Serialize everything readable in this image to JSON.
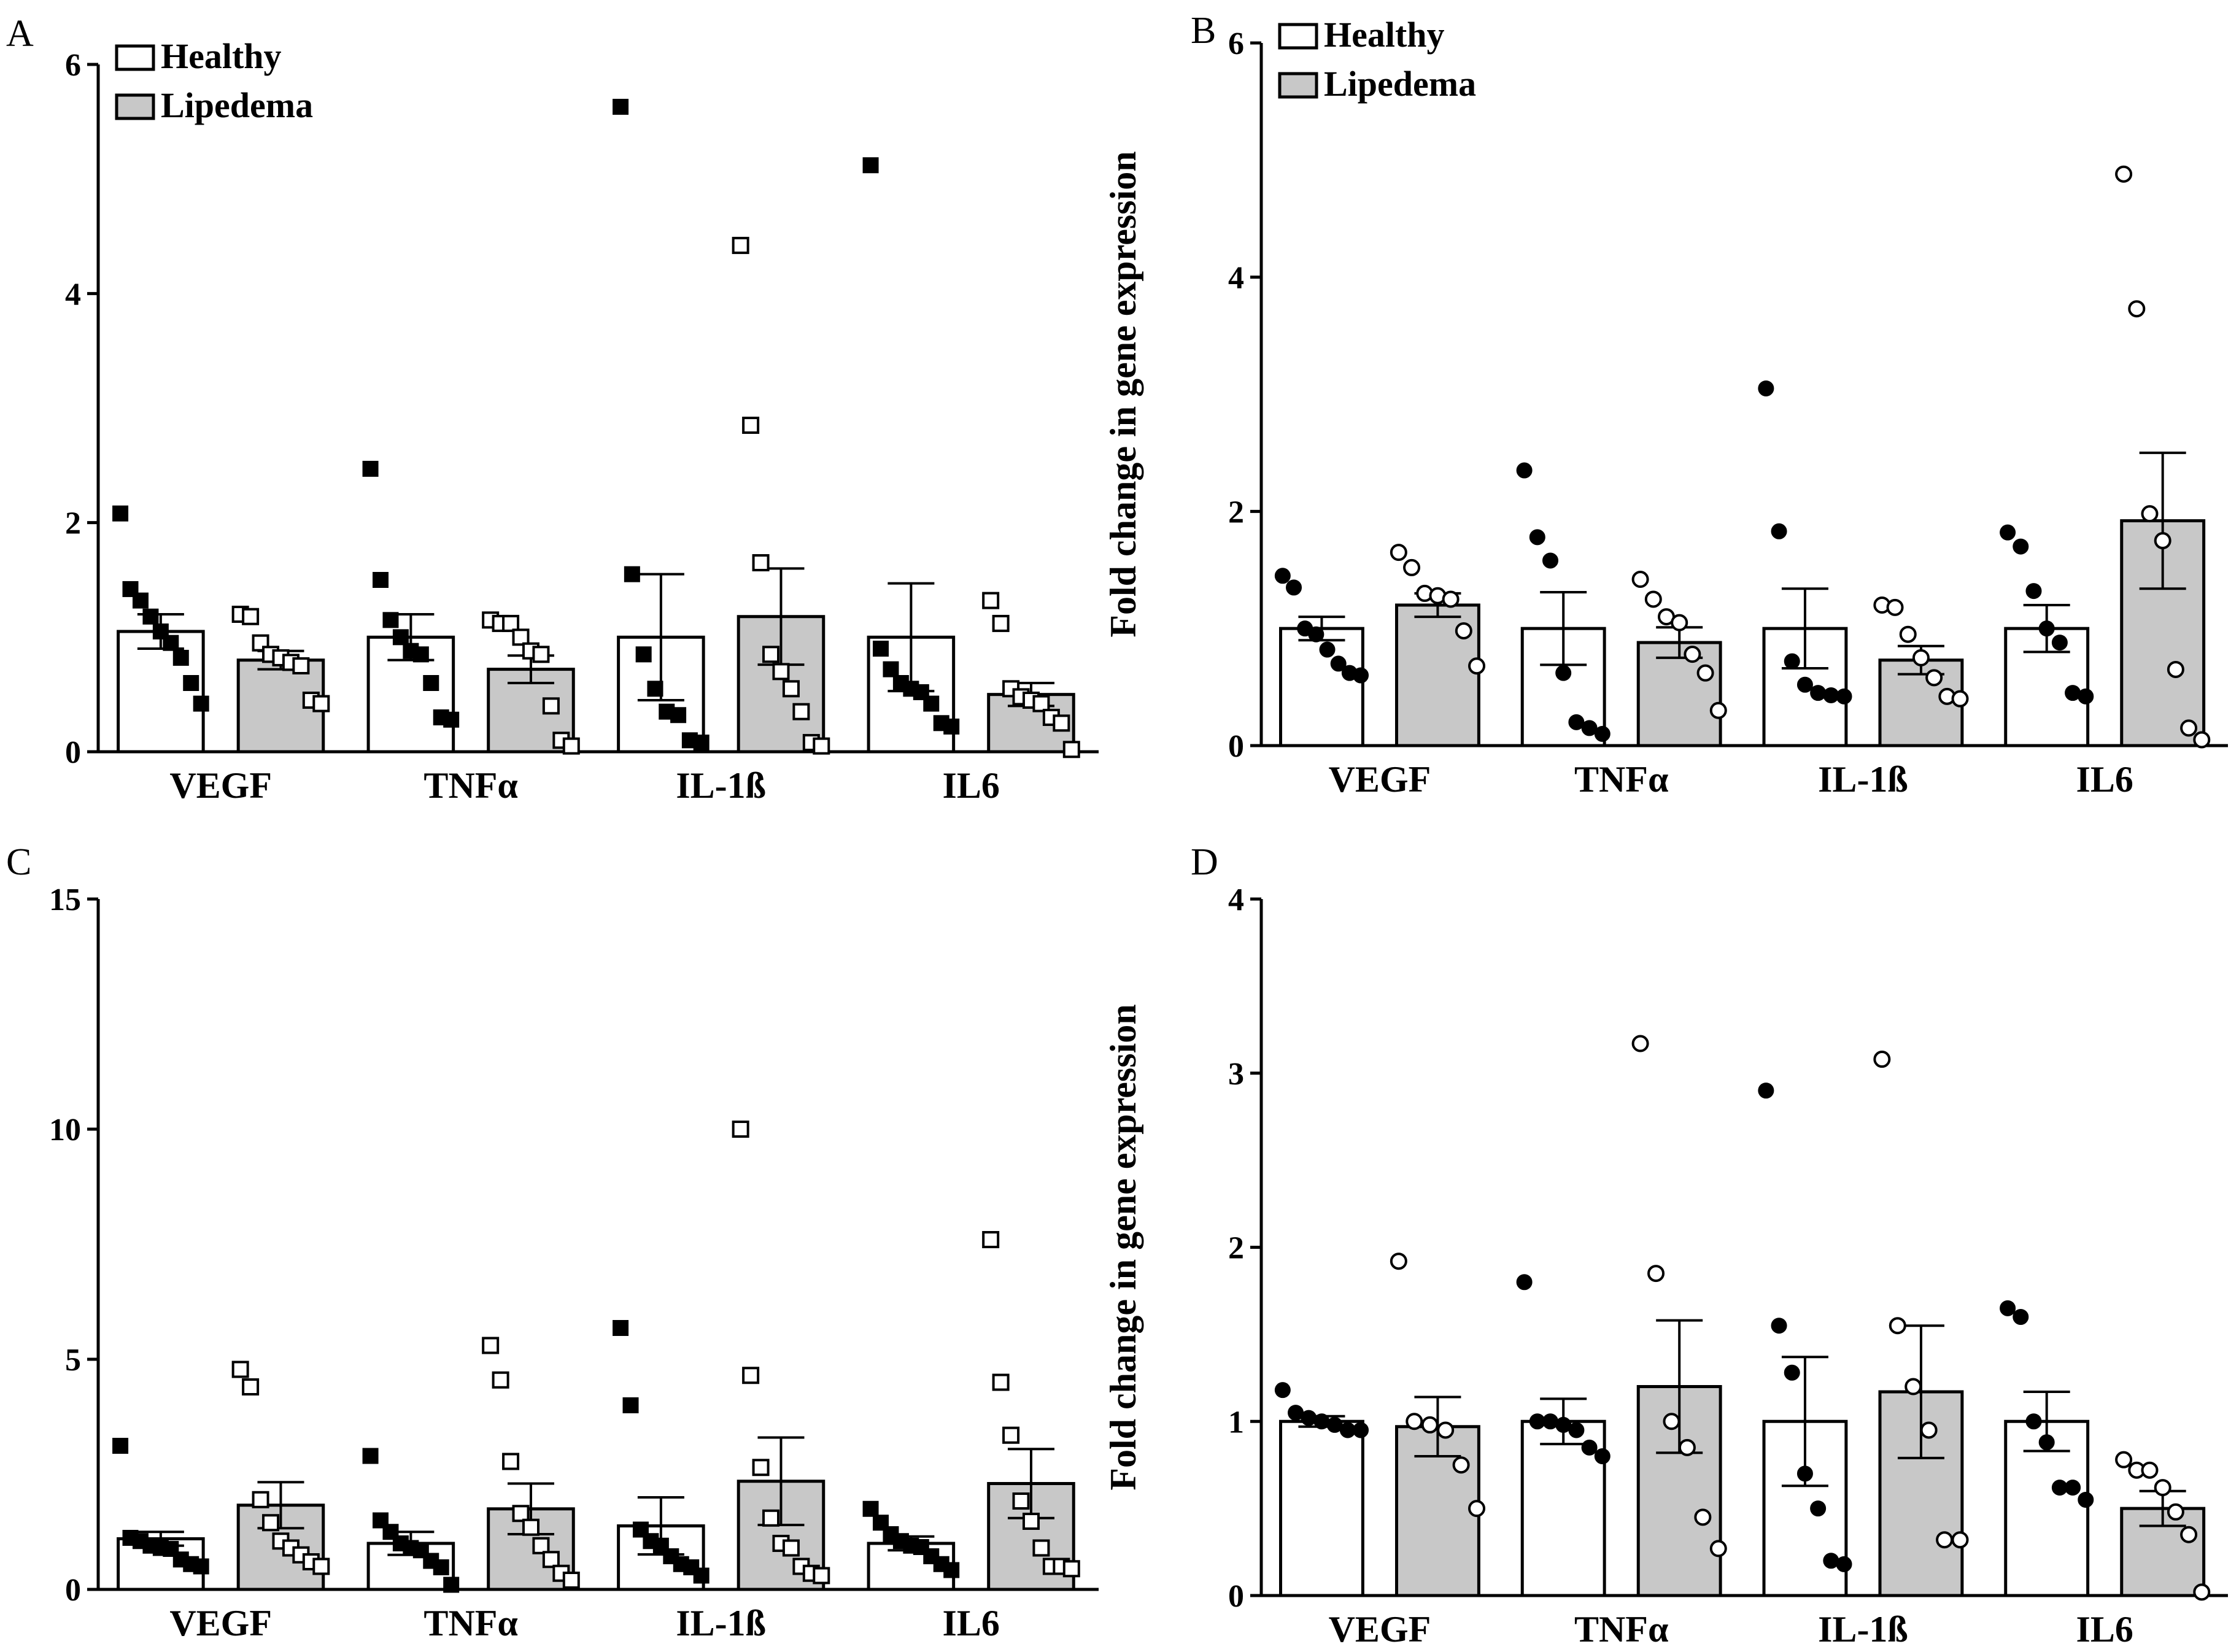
{
  "figure": {
    "panels": [
      {
        "id": "A",
        "letter": "A"
      },
      {
        "id": "B",
        "letter": "B"
      },
      {
        "id": "C",
        "letter": "C"
      },
      {
        "id": "D",
        "letter": "D"
      }
    ]
  },
  "chart_data": [
    {
      "panel": "A",
      "type": "bar",
      "ylabel": "Fold change in gene expression",
      "xlabel": "",
      "ylim": [
        0,
        6
      ],
      "yticks": [
        0,
        2,
        4,
        6
      ],
      "categories": [
        "VEGF",
        "TNFα",
        "IL-1ß",
        "IL6"
      ],
      "legend": {
        "placement": "top-left",
        "entries": [
          "Healthy",
          "Lipedema"
        ]
      },
      "marker": "square",
      "colors": {
        "Healthy": "#ffffff",
        "Lipedema": "#c8c8c8",
        "stroke": "#000000"
      },
      "series": [
        {
          "name": "Healthy",
          "fill": "#ffffff",
          "point_style": "filled",
          "values": [
            1.05,
            1.0,
            1.0,
            1.0
          ],
          "errors": [
            0.15,
            0.2,
            0.55,
            0.47
          ],
          "points": [
            [
              2.08,
              1.42,
              1.32,
              1.18,
              1.05,
              0.95,
              0.82,
              0.6,
              0.42
            ],
            [
              2.47,
              1.5,
              1.15,
              1.0,
              0.88,
              0.85,
              0.6,
              0.3,
              0.28
            ],
            [
              5.63,
              1.55,
              0.85,
              0.55,
              0.35,
              0.32,
              0.1,
              0.08
            ],
            [
              5.12,
              0.9,
              0.72,
              0.6,
              0.55,
              0.52,
              0.42,
              0.25,
              0.22
            ]
          ]
        },
        {
          "name": "Lipedema",
          "fill": "#c8c8c8",
          "point_style": "open",
          "values": [
            0.8,
            0.72,
            1.18,
            0.5
          ],
          "errors": [
            0.08,
            0.12,
            0.42,
            0.1
          ],
          "points": [
            [
              1.2,
              1.18,
              0.95,
              0.85,
              0.82,
              0.78,
              0.75,
              0.45,
              0.42
            ],
            [
              1.15,
              1.12,
              1.12,
              1.0,
              0.88,
              0.85,
              0.4,
              0.1,
              0.05
            ],
            [
              4.42,
              2.85,
              1.65,
              0.85,
              0.7,
              0.55,
              0.35,
              0.08,
              0.05
            ],
            [
              1.32,
              1.12,
              0.55,
              0.48,
              0.45,
              0.42,
              0.3,
              0.25,
              0.02
            ]
          ]
        }
      ]
    },
    {
      "panel": "B",
      "type": "bar",
      "ylabel": "Fold change in gene expression",
      "xlabel": "",
      "ylim": [
        0,
        6
      ],
      "yticks": [
        0,
        2,
        4,
        6
      ],
      "categories": [
        "VEGF",
        "TNFα",
        "IL-1ß",
        "IL6"
      ],
      "legend": {
        "placement": "top-left",
        "entries": [
          "Healthy",
          "Lipedema"
        ]
      },
      "marker": "circle",
      "colors": {
        "Healthy": "#ffffff",
        "Lipedema": "#c8c8c8",
        "stroke": "#000000"
      },
      "series": [
        {
          "name": "Healthy",
          "fill": "#ffffff",
          "point_style": "filled",
          "values": [
            1.0,
            1.0,
            1.0,
            1.0
          ],
          "errors": [
            0.1,
            0.31,
            0.34,
            0.2
          ],
          "points": [
            [
              1.45,
              1.35,
              1.0,
              0.95,
              0.82,
              0.7,
              0.62,
              0.6
            ],
            [
              2.35,
              1.78,
              1.58,
              0.62,
              0.2,
              0.15,
              0.1
            ],
            [
              3.05,
              1.83,
              0.72,
              0.52,
              0.45,
              0.43,
              0.42
            ],
            [
              1.82,
              1.7,
              1.32,
              1.0,
              0.88,
              0.45,
              0.42
            ]
          ]
        },
        {
          "name": "Lipedema",
          "fill": "#c8c8c8",
          "point_style": "open",
          "values": [
            1.2,
            0.88,
            0.73,
            1.92
          ],
          "errors": [
            0.1,
            0.13,
            0.12,
            0.58
          ],
          "points": [
            [
              1.65,
              1.52,
              1.3,
              1.28,
              1.25,
              0.98,
              0.68
            ],
            [
              1.42,
              1.25,
              1.1,
              1.05,
              0.78,
              0.62,
              0.3
            ],
            [
              1.2,
              1.18,
              0.95,
              0.75,
              0.58,
              0.42,
              0.4
            ],
            [
              4.88,
              3.73,
              1.98,
              1.75,
              0.65,
              0.15,
              0.05
            ]
          ]
        }
      ]
    },
    {
      "panel": "C",
      "type": "bar",
      "ylabel": "Fold change in gene expression",
      "xlabel": "",
      "ylim": [
        0,
        15
      ],
      "yticks": [
        0,
        5,
        10,
        15
      ],
      "categories": [
        "VEGF",
        "TNFα",
        "IL-1ß",
        "IL6"
      ],
      "legend": null,
      "marker": "square",
      "colors": {
        "Healthy": "#ffffff",
        "Lipedema": "#c8c8c8",
        "stroke": "#000000"
      },
      "series": [
        {
          "name": "Healthy",
          "fill": "#ffffff",
          "point_style": "filled",
          "values": [
            1.1,
            1.0,
            1.38,
            1.0
          ],
          "errors": [
            0.15,
            0.25,
            0.62,
            0.15
          ],
          "points": [
            [
              3.12,
              1.12,
              1.05,
              0.95,
              0.9,
              0.88,
              0.65,
              0.55,
              0.5
            ],
            [
              2.9,
              1.5,
              1.25,
              1.0,
              0.9,
              0.85,
              0.62,
              0.48,
              0.1
            ],
            [
              5.68,
              4.0,
              1.3,
              1.05,
              0.95,
              0.72,
              0.55,
              0.48,
              0.3
            ],
            [
              1.75,
              1.45,
              1.2,
              1.05,
              0.95,
              0.92,
              0.72,
              0.55,
              0.42
            ]
          ]
        },
        {
          "name": "Lipedema",
          "fill": "#c8c8c8",
          "point_style": "open",
          "values": [
            1.83,
            1.75,
            2.35,
            2.3
          ],
          "errors": [
            0.5,
            0.55,
            0.95,
            0.75
          ],
          "points": [
            [
              4.78,
              4.4,
              1.95,
              1.45,
              1.05,
              0.9,
              0.75,
              0.6,
              0.5
            ],
            [
              5.3,
              4.55,
              2.78,
              1.65,
              1.35,
              0.95,
              0.65,
              0.35,
              0.2
            ],
            [
              10.0,
              4.65,
              2.65,
              1.55,
              1.0,
              0.9,
              0.5,
              0.35,
              0.3
            ],
            [
              7.6,
              4.5,
              3.35,
              1.92,
              1.48,
              0.9,
              0.5,
              0.5,
              0.45
            ]
          ]
        }
      ]
    },
    {
      "panel": "D",
      "type": "bar",
      "ylabel": "Fold change in gene expression",
      "xlabel": "",
      "ylim": [
        0,
        4
      ],
      "yticks": [
        0,
        1,
        2,
        3,
        4
      ],
      "categories": [
        "VEGF",
        "TNFα",
        "IL-1ß",
        "IL6"
      ],
      "legend": null,
      "marker": "circle",
      "colors": {
        "Healthy": "#ffffff",
        "Lipedema": "#c8c8c8",
        "stroke": "#000000"
      },
      "series": [
        {
          "name": "Healthy",
          "fill": "#ffffff",
          "point_style": "filled",
          "values": [
            1.0,
            1.0,
            1.0,
            1.0
          ],
          "errors": [
            0.03,
            0.13,
            0.37,
            0.17
          ],
          "points": [
            [
              1.18,
              1.05,
              1.02,
              1.0,
              0.98,
              0.95,
              0.95
            ],
            [
              1.8,
              1.0,
              1.0,
              0.98,
              0.95,
              0.85,
              0.8
            ],
            [
              2.9,
              1.55,
              1.28,
              0.7,
              0.5,
              0.2,
              0.18
            ],
            [
              1.65,
              1.6,
              1.0,
              0.88,
              0.62,
              0.62,
              0.55
            ]
          ]
        },
        {
          "name": "Lipedema",
          "fill": "#c8c8c8",
          "point_style": "open",
          "values": [
            0.97,
            1.2,
            1.17,
            0.5
          ],
          "errors": [
            0.17,
            0.38,
            0.38,
            0.1
          ],
          "points": [
            [
              1.92,
              1.0,
              0.98,
              0.95,
              0.75,
              0.5
            ],
            [
              3.17,
              1.85,
              1.0,
              0.85,
              0.45,
              0.27
            ],
            [
              3.08,
              1.55,
              1.2,
              0.95,
              0.32,
              0.32
            ],
            [
              0.78,
              0.72,
              0.72,
              0.62,
              0.48,
              0.35,
              0.02
            ]
          ]
        }
      ]
    }
  ]
}
